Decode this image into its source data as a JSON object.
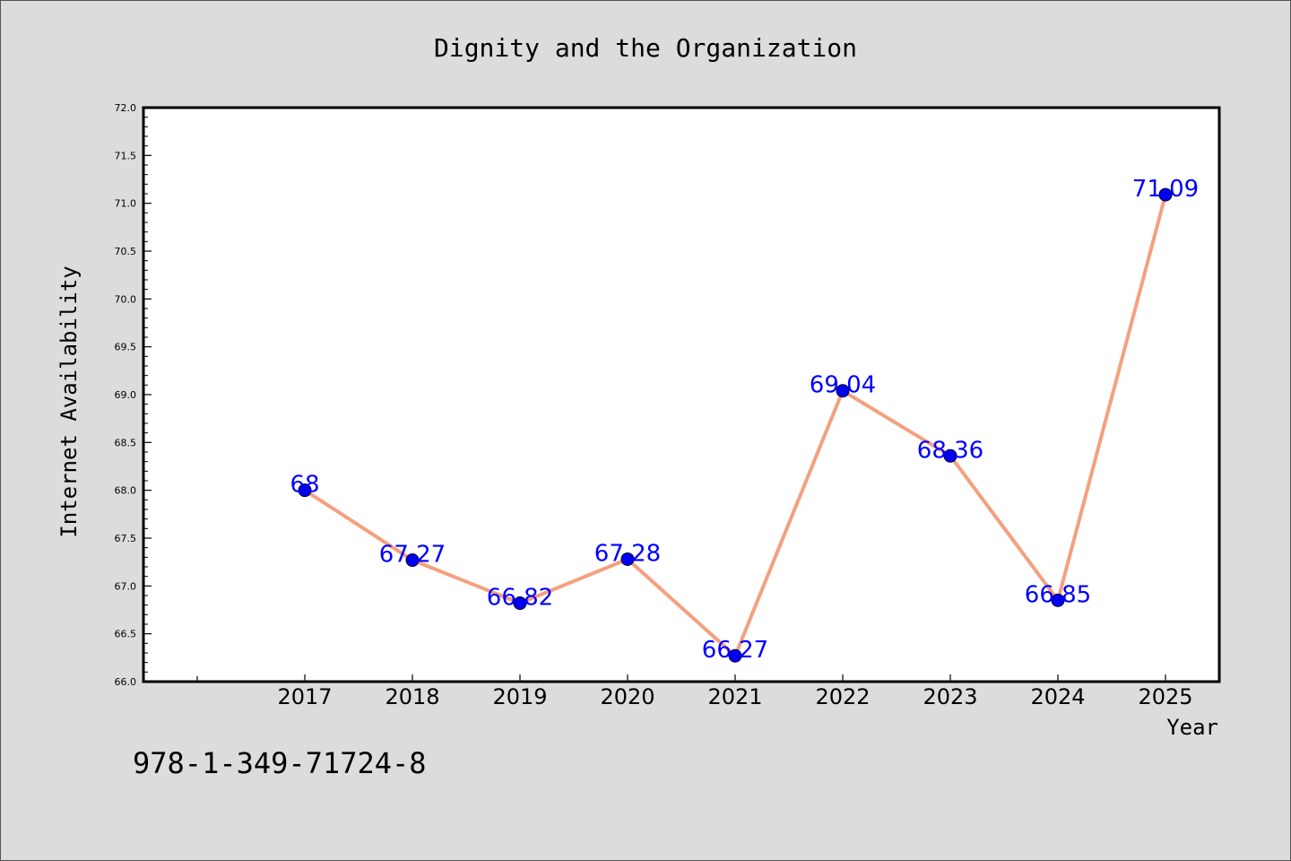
{
  "chart_data": {
    "type": "line",
    "title": "Dignity and the Organization",
    "xlabel": "Year",
    "ylabel": "Internet Availability",
    "categories": [
      "2017",
      "2018",
      "2019",
      "2020",
      "2021",
      "2022",
      "2023",
      "2024",
      "2025"
    ],
    "series": [
      {
        "values": [
          68,
          67.27,
          66.82,
          67.28,
          66.27,
          69.04,
          68.36,
          66.85,
          71.09
        ],
        "labels": [
          "68",
          "67.27",
          "66.82",
          "67.28",
          "66.27",
          "69.04",
          "68.36",
          "66.85",
          "71.09"
        ],
        "line_color": "#f4a07e",
        "marker_color": "#0000ee",
        "label_color": "#0000ff"
      }
    ],
    "ylim": [
      66.0,
      72.0
    ],
    "yticks": [
      "66.0",
      "66.5",
      "67.0",
      "67.5",
      "68.0",
      "68.5",
      "69.0",
      "69.5",
      "70.0",
      "70.5",
      "71.0",
      "71.5",
      "72.0"
    ],
    "grid": false,
    "legend": "none"
  },
  "footer": {
    "code": "978-1-349-71724-8"
  },
  "colors": {
    "background": "#dcdcdc",
    "plot_background": "#ffffff"
  }
}
